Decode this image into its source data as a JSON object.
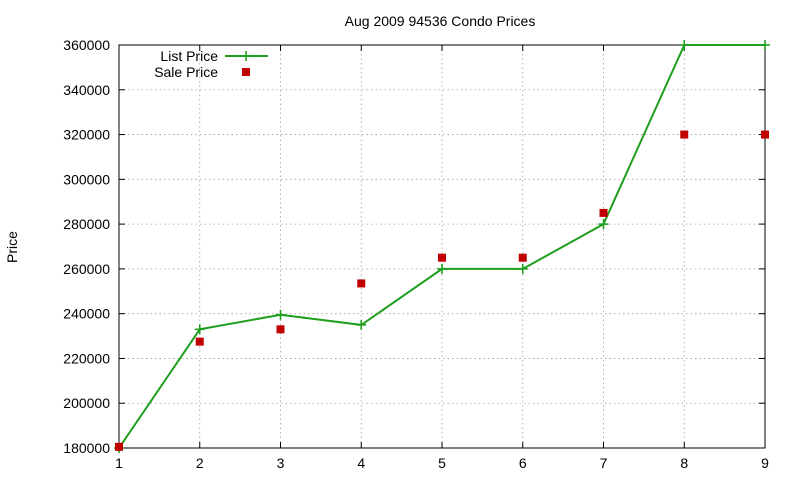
{
  "chart_data": {
    "type": "line",
    "title": "Aug 2009 94536 Condo Prices",
    "xlabel": "",
    "ylabel": "Price",
    "xlim": [
      1,
      9
    ],
    "ylim": [
      180000,
      360000
    ],
    "x_ticks": [
      1,
      2,
      3,
      4,
      5,
      6,
      7,
      8,
      9
    ],
    "y_ticks": [
      180000,
      200000,
      220000,
      240000,
      260000,
      280000,
      300000,
      320000,
      340000,
      360000
    ],
    "grid": true,
    "legend_position": "top-left",
    "series": [
      {
        "name": "List Price",
        "style": "line-points",
        "marker": "plus",
        "color": "#1f9e1f",
        "x": [
          1,
          2,
          3,
          4,
          5,
          6,
          7,
          8,
          9
        ],
        "values": [
          180000,
          233000,
          239500,
          235000,
          260000,
          260000,
          280000,
          360000,
          360000
        ]
      },
      {
        "name": "Sale Price",
        "style": "points",
        "marker": "square",
        "color": "#c00000",
        "x": [
          1,
          2,
          3,
          4,
          5,
          6,
          7,
          8,
          9
        ],
        "values": [
          180500,
          227500,
          233000,
          253500,
          265000,
          265000,
          285000,
          320000,
          320000
        ]
      }
    ]
  }
}
